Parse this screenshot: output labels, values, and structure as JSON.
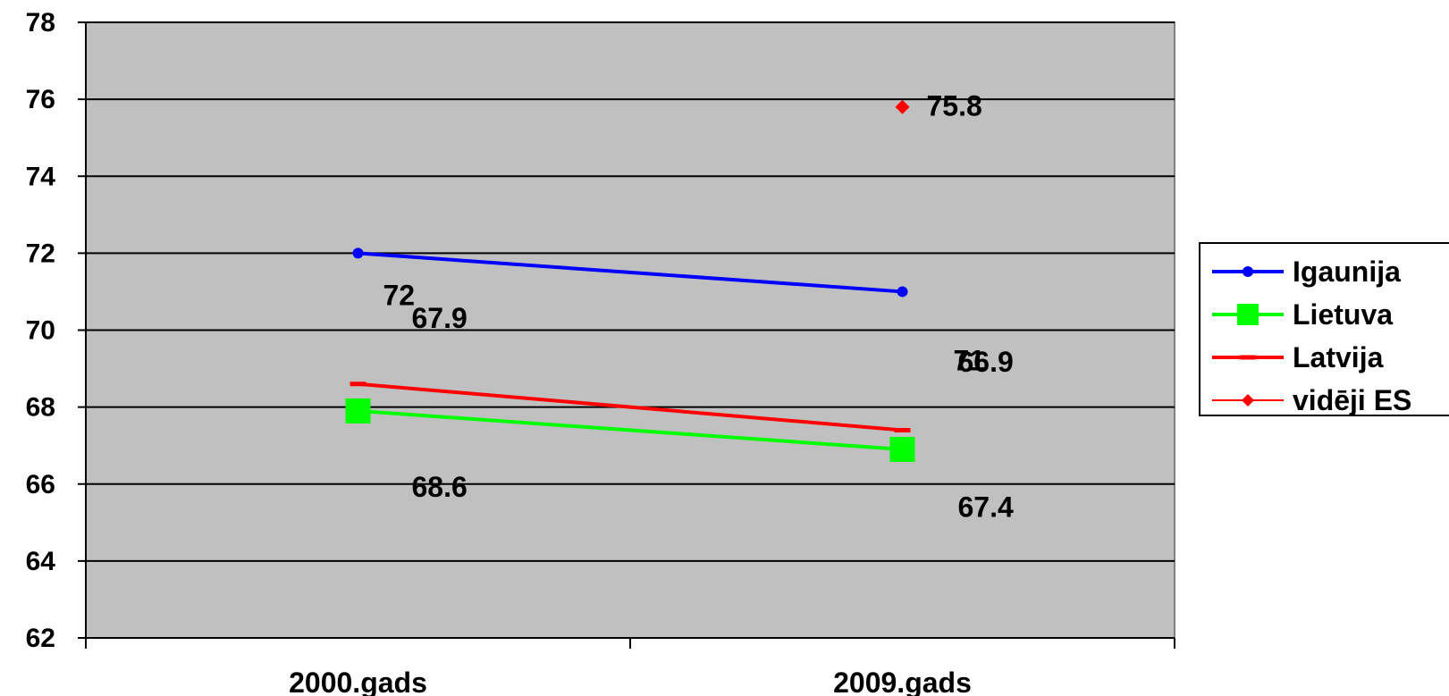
{
  "chart_data": {
    "type": "line",
    "categories": [
      "2000.gads",
      "2009.gads"
    ],
    "ylim": [
      62,
      78
    ],
    "y_ticks": [
      62,
      64,
      66,
      68,
      70,
      72,
      74,
      76,
      78
    ],
    "grid": true,
    "legend_position": "right",
    "plot_background": "#c0c0c0",
    "series": [
      {
        "name": "Igaunija",
        "values": [
          72,
          71
        ],
        "color": "#0000ff",
        "marker": "circle",
        "labels": [
          "72",
          "71"
        ]
      },
      {
        "name": "Lietuva",
        "values": [
          67.9,
          66.9
        ],
        "color": "#00ff00",
        "marker": "square",
        "labels": [
          "67.9",
          "66.9"
        ]
      },
      {
        "name": "Latvija",
        "values": [
          68.6,
          67.4
        ],
        "color": "#ff0000",
        "marker": "dash",
        "labels": [
          "68.6",
          "67.4"
        ]
      },
      {
        "name": "vidēji ES",
        "values": [
          null,
          75.8
        ],
        "color": "#ff0000",
        "marker": "diamond",
        "labels": [
          null,
          "75.8"
        ]
      }
    ]
  }
}
